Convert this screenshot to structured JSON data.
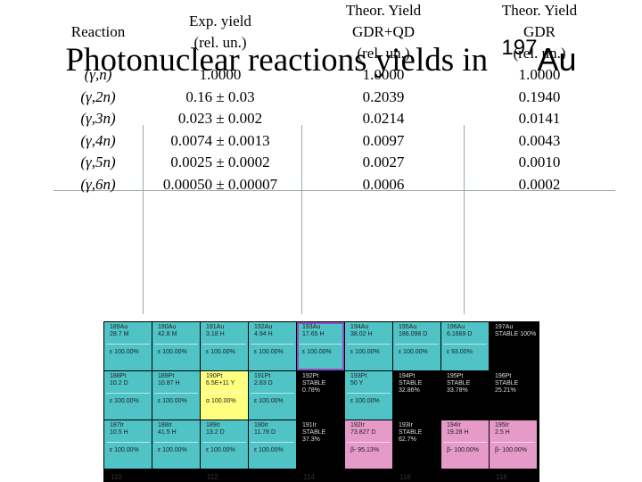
{
  "title": {
    "text": "Photonuclear reactions yields in",
    "mass": "197",
    "element": "Au"
  },
  "table": {
    "headers": {
      "reaction": "Reaction",
      "exp": [
        "Exp. yield",
        "(rel. un.)"
      ],
      "gdrqd": [
        "Theor. Yield",
        "GDR+QD",
        "(rel. un.)"
      ],
      "gdr": [
        "Theor. Yield",
        "GDR",
        "(rel. un.)"
      ]
    },
    "rows": [
      {
        "reaction": "(γ,n)",
        "exp": "1.0000",
        "gdrqd": "1.0000",
        "gdr": "1.0000"
      },
      {
        "reaction": "(γ,2n)",
        "exp": "0.16 ± 0.03",
        "gdrqd": "0.2039",
        "gdr": "0.1940"
      },
      {
        "reaction": "(γ,3n)",
        "exp": "0.023 ± 0.002",
        "gdrqd": "0.0214",
        "gdr": "0.0141"
      },
      {
        "reaction": "(γ,4n)",
        "exp": "0.0074 ± 0.0013",
        "gdrqd": "0.0097",
        "gdr": "0.0043"
      },
      {
        "reaction": "(γ,5n)",
        "exp": "0.0025 ± 0.0002",
        "gdrqd": "0.0027",
        "gdr": "0.0010"
      },
      {
        "reaction": "(γ,6n)",
        "exp": "0.00050 ± 0.00007",
        "gdrqd": "0.0006",
        "gdr": "0.0002"
      }
    ]
  },
  "chart": {
    "rows": [
      [
        {
          "name": "189Au",
          "life": "28.7 M",
          "dec": "ε 100.00%",
          "color": "teal"
        },
        {
          "name": "190Au",
          "life": "42.8 M",
          "dec": "ε 100.00%",
          "color": "teal"
        },
        {
          "name": "191Au",
          "life": "3.18 H",
          "dec": "ε 100.00%",
          "color": "teal"
        },
        {
          "name": "192Au",
          "life": "4.94 H",
          "dec": "ε 100.00%",
          "color": "teal"
        },
        {
          "name": "193Au",
          "life": "17.65 H",
          "dec": "ε 100.00%",
          "color": "teal",
          "sel": true
        },
        {
          "name": "194Au",
          "life": "38.02 H",
          "dec": "ε 100.00%",
          "color": "teal"
        },
        {
          "name": "195Au",
          "life": "186.098 D",
          "dec": "ε 100.00%",
          "color": "teal"
        },
        {
          "name": "196Au",
          "life": "6.1669 D",
          "dec": "ε 93.00%",
          "color": "teal"
        },
        {
          "name": "197Au",
          "life": "STABLE 100%",
          "dec": "",
          "color": "black"
        }
      ],
      [
        {
          "name": "188Pt",
          "life": "10.2 D",
          "dec": "ε 100.00%",
          "color": "teal"
        },
        {
          "name": "189Pt",
          "life": "10.87 H",
          "dec": "ε 100.00%",
          "color": "teal"
        },
        {
          "name": "190Pt",
          "life": "6.5E+11 Y",
          "dec": "α 100.00%",
          "color": "yellow"
        },
        {
          "name": "191Pt",
          "life": "2.83 D",
          "dec": "ε 100.00%",
          "color": "teal"
        },
        {
          "name": "192Pt",
          "life": "STABLE 0.78%",
          "dec": "",
          "color": "black"
        },
        {
          "name": "193Pt",
          "life": "50 Y",
          "dec": "ε 100.00%",
          "color": "teal"
        },
        {
          "name": "194Pt",
          "life": "STABLE 32.86%",
          "dec": "",
          "color": "black"
        },
        {
          "name": "195Pt",
          "life": "STABLE 33.78%",
          "dec": "",
          "color": "black"
        },
        {
          "name": "196Pt",
          "life": "STABLE 25.21%",
          "dec": "",
          "color": "black"
        }
      ],
      [
        {
          "name": "187Ir",
          "life": "10.5 H",
          "dec": "ε 100.00%",
          "color": "teal"
        },
        {
          "name": "188Ir",
          "life": "41.5 H",
          "dec": "ε 100.00%",
          "color": "teal"
        },
        {
          "name": "189Ir",
          "life": "13.2 D",
          "dec": "ε 100.00%",
          "color": "teal"
        },
        {
          "name": "190Ir",
          "life": "11.78 D",
          "dec": "ε 100.00%",
          "color": "teal"
        },
        {
          "name": "191Ir",
          "life": "STABLE 37.3%",
          "dec": "",
          "color": "black"
        },
        {
          "name": "192Ir",
          "life": "73.827 D",
          "dec": "β- 95.13%",
          "color": "pink"
        },
        {
          "name": "193Ir",
          "life": "STABLE 62.7%",
          "dec": "",
          "color": "black"
        },
        {
          "name": "194Ir",
          "life": "19.28 H",
          "dec": "β- 100.00%",
          "color": "pink"
        },
        {
          "name": "195Ir",
          "life": "2.5 H",
          "dec": "β- 100.00%",
          "color": "pink"
        }
      ]
    ],
    "axis": [
      "110",
      "112",
      "114",
      "116",
      "118"
    ]
  }
}
